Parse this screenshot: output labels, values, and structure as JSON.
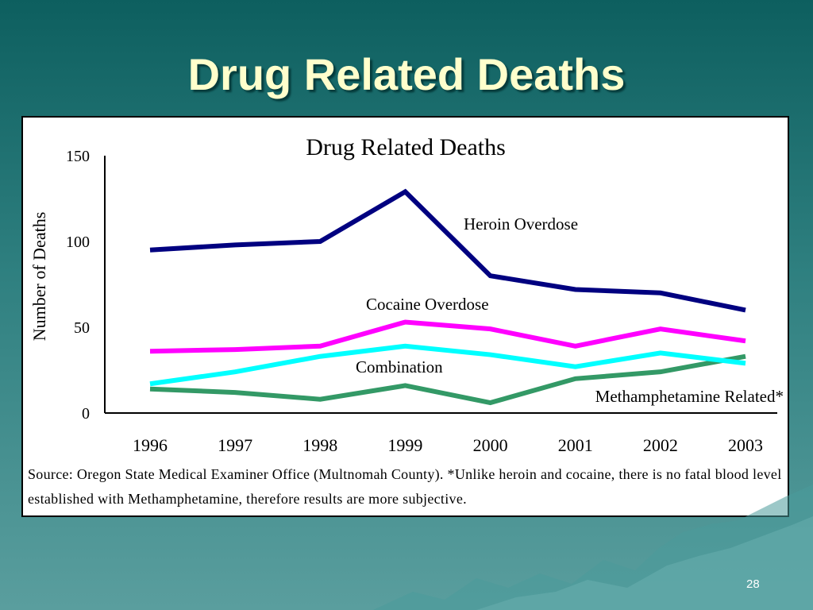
{
  "slide": {
    "title": "Drug Related Deaths",
    "page_number": "28",
    "source_note": "Source: Oregon State Medical Examiner Office (Multnomah County). *Unlike heroin and cocaine, there is no fatal blood level established with Methamphetamine, therefore results are more subjective."
  },
  "chart_data": {
    "type": "line",
    "title": "Drug Related Deaths",
    "xlabel": "",
    "ylabel": "Number of  Deaths",
    "categories": [
      "1996",
      "1997",
      "1998",
      "1999",
      "2000",
      "2001",
      "2002",
      "2003"
    ],
    "ylim": [
      0,
      150
    ],
    "yticks": [
      "0",
      "50",
      "100",
      "150"
    ],
    "grid": false,
    "legend": "inline labels",
    "series": [
      {
        "name": "Heroin Overdose",
        "color": "#000080",
        "values": [
          95,
          98,
          100,
          129,
          80,
          72,
          70,
          60
        ]
      },
      {
        "name": "Cocaine Overdose",
        "color": "#ff00ff",
        "values": [
          36,
          37,
          39,
          53,
          49,
          39,
          49,
          42
        ]
      },
      {
        "name": "Combination",
        "color": "#00ffff",
        "values": [
          17,
          24,
          33,
          39,
          34,
          27,
          35,
          29
        ]
      },
      {
        "name": "Methamphetamine Related*",
        "color": "#339966",
        "values": [
          14,
          12,
          8,
          16,
          6,
          20,
          24,
          33
        ]
      }
    ]
  }
}
